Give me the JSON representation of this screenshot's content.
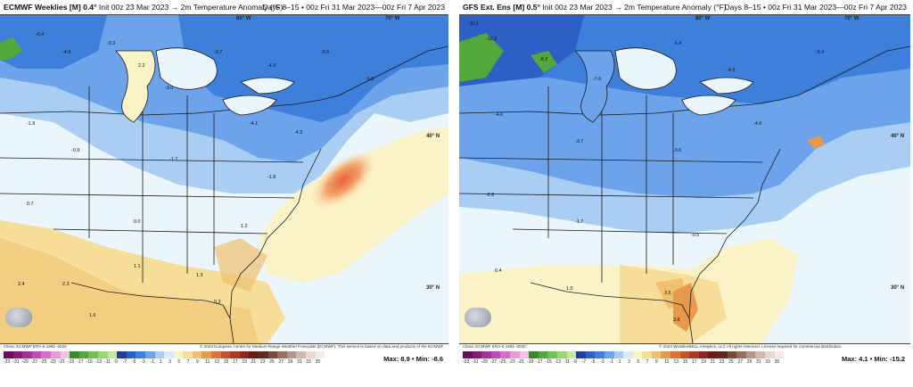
{
  "left": {
    "title_model": "ECMWF Weeklies [M] 0.4°",
    "title_rest": " Init 00z 23 Mar 2023 → 2m Temperature Anomaly (°F)",
    "valid": "Days 8–15 • 00z Fri 31 Mar 2023—00z Fri 7 Apr 2023",
    "lat_40": "40° N",
    "lat_30": "30° N",
    "lon_80": "80° W",
    "lon_70": "70° W",
    "credit_left": "Clima: ECMWF ERA-5 1991–2020",
    "credit_right": "© 2023 European Centre for Medium-Range Weather Forecasts (ECMWF). This service is based on data and products of the ECMWF",
    "max_label": "Max: 8.9",
    "min_label": "Min: -8.6"
  },
  "right": {
    "title_model": "GFS Ext. Ens [M] 0.5°",
    "title_rest": " Init 00z 23 Mar 2023 → 2m Temperature Anomaly (°F)",
    "valid": "Days 8–15 • 00z Fri 31 Mar 2023—00z Fri 7 Apr 2023",
    "lat_40": "40° N",
    "lat_30": "30° N",
    "lon_80": "80° W",
    "lon_70": "70° W",
    "credit_left": "Clima: ECMWF ERA-5 1991–2020",
    "credit_right": "© 2023 WeatherBELL Analytics, LLC All rights reserved. License required for commercial distribution.",
    "max_label": "Max: 4.1",
    "min_label": "Min: -15.2"
  },
  "colorbar_ticks": [
    "-33",
    "-31",
    "-29",
    "-27",
    "-25",
    "-23",
    "-21",
    "-19",
    "-17",
    "-15",
    "-13",
    "-11",
    "-9",
    "-7",
    "-5",
    "-3",
    "-1",
    "1",
    "3",
    "5",
    "7",
    "9",
    "11",
    "13",
    "15",
    "17",
    "19",
    "21",
    "23",
    "25",
    "27",
    "29",
    "31",
    "33",
    "35"
  ],
  "colorbar_colors": [
    "#6a0f5e",
    "#8a1a7a",
    "#a8309a",
    "#c24ab3",
    "#d86cc9",
    "#e89ad9",
    "#f1c3ea",
    "#3a8a2a",
    "#52a83b",
    "#73c054",
    "#9bd675",
    "#c4e8a2",
    "#1f3f9a",
    "#2d5fc4",
    "#3f7fdc",
    "#6da3ea",
    "#a9cdf3",
    "#d6ecfb",
    "#fbf2c8",
    "#f6dd98",
    "#efc16e",
    "#e79a4c",
    "#dc7433",
    "#c9522a",
    "#ad3826",
    "#8f2620",
    "#6d1a1a",
    "#5c2a20",
    "#7a4a3a",
    "#987062",
    "#b8958a",
    "#d3b7ae",
    "#e8d6d0",
    "#f4eae7"
  ]
}
